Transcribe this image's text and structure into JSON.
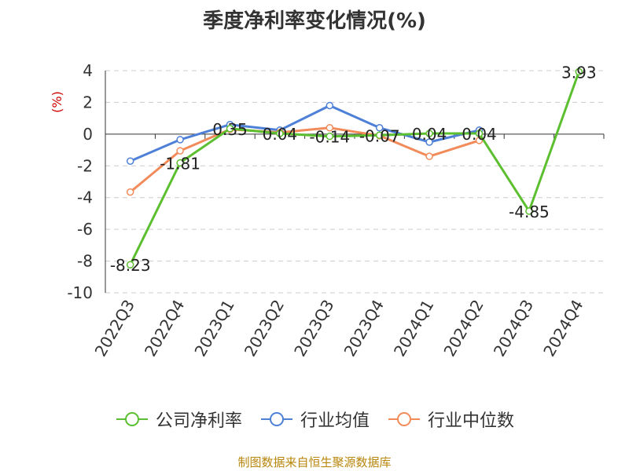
{
  "chart_data": {
    "type": "line",
    "title": "季度净利率变化情况(%)",
    "ylabel": "(%)",
    "categories": [
      "2022Q3",
      "2022Q4",
      "2023Q1",
      "2023Q2",
      "2023Q3",
      "2023Q4",
      "2024Q1",
      "2024Q2",
      "2024Q3",
      "2024Q4"
    ],
    "ylim": [
      -10,
      4
    ],
    "yticks": [
      4,
      2,
      0,
      -2,
      -4,
      -6,
      -8,
      -10
    ],
    "grid": true,
    "legend_position": "bottom",
    "series": [
      {
        "name": "公司净利率",
        "color": "#5bbf2f",
        "values": [
          -8.23,
          -1.81,
          0.35,
          0.04,
          -0.14,
          -0.07,
          0.04,
          0.04,
          -4.85,
          3.93
        ],
        "labels": [
          "-8.23",
          "-1.81",
          "0.35",
          "0.04",
          "-0.14",
          "-0.07",
          "0.04",
          "0.04",
          "-4.85",
          "3.93"
        ]
      },
      {
        "name": "行业均值",
        "color": "#4e80d8",
        "values": [
          -1.7,
          -0.35,
          0.6,
          0.25,
          1.8,
          0.4,
          -0.5,
          0.25,
          null,
          null
        ]
      },
      {
        "name": "行业中位数",
        "color": "#f28b5a",
        "values": [
          -3.65,
          -1.05,
          0.3,
          0.1,
          0.4,
          -0.1,
          -1.4,
          -0.4,
          null,
          null
        ]
      }
    ]
  },
  "source": "制图数据来自恒生聚源数据库"
}
